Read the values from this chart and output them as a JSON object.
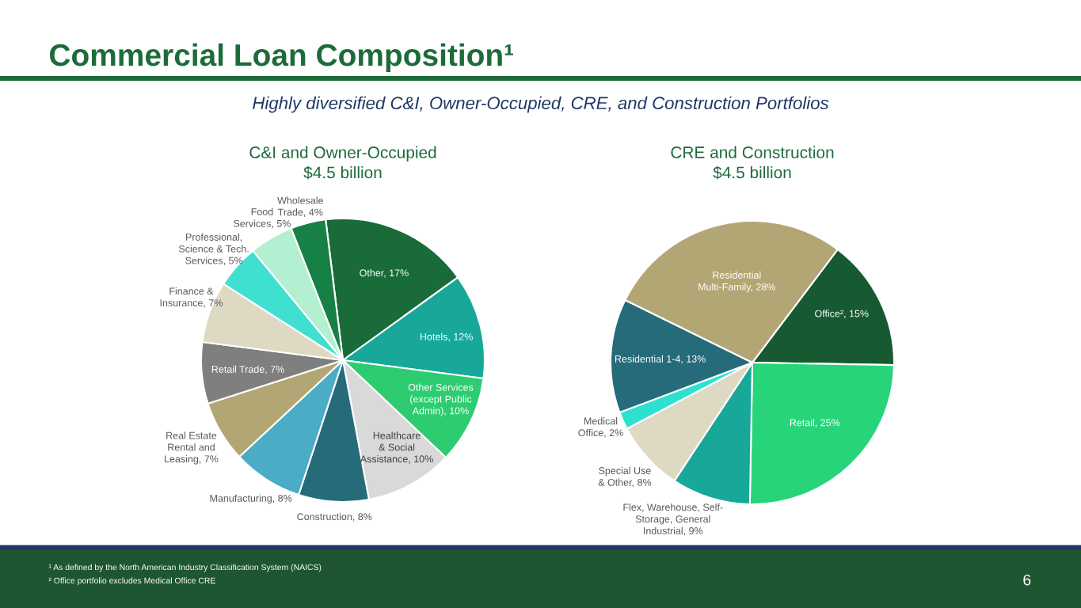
{
  "chart_data": [
    {
      "type": "pie",
      "title": "Commercial Loan Composition¹",
      "subtitle": "Highly diversified C&I, Owner-Occupied, CRE, and Construction Portfolios",
      "xlabel": "C&I and Owner-Occupied\n$4.5 billion",
      "categories": [
        "Other",
        "Hotels",
        "Other Services\n(except Public\nAdmin)",
        "Healthcare\n& Social\nAssistance",
        "Construction",
        "Manufacturing",
        "Real Estate\nRental and\nLeasing",
        "Retail Trade",
        "Finance &\nInsurance",
        "Professional,\nScience & Tech.\nServices",
        "Food\nServices",
        "Wholesale\nTrade"
      ],
      "values": [
        17,
        12,
        10,
        10,
        8,
        8,
        7,
        7,
        7,
        5,
        5,
        4
      ],
      "value_labels": [
        "17%",
        "12%",
        "10%",
        "10%",
        "8%",
        "8%",
        "7%",
        "7%",
        "7%",
        "5%",
        "5%",
        "4%"
      ],
      "colors": [
        "#1a6b3a",
        "#17a89a",
        "#2ecc71",
        "#d9d9d9",
        "#266b7a",
        "#4bacc6",
        "#b2a774",
        "#7f7f7f",
        "#ddd9c3",
        "#40e0d0",
        "#b3efd1",
        "#178046"
      ],
      "annotations": [
        "¹ As defined by the North American Industry Classification System (NAICS)",
        "² Office portfolio excludes Medical Office CRE",
        "6"
      ]
    },
    {
      "type": "pie",
      "xlabel": "CRE and Construction\n$4.5 billion",
      "categories": [
        "Office²",
        "Retail",
        "Flex, Warehouse, Self-\nStorage, General\nIndustrial",
        "Special Use\n& Other",
        "Medical\nOffice",
        "Residential 1-4",
        "Residential\nMulti-Family"
      ],
      "values": [
        15,
        25,
        9,
        8,
        2,
        13,
        28
      ],
      "value_labels": [
        "15%",
        "25%",
        "9%",
        "8%",
        "2%",
        "13%",
        "28%"
      ],
      "colors": [
        "#175a32",
        "#27d47a",
        "#17a89a",
        "#ddd9c3",
        "#2ee0d0",
        "#266b7a",
        "#b2a774"
      ]
    }
  ]
}
